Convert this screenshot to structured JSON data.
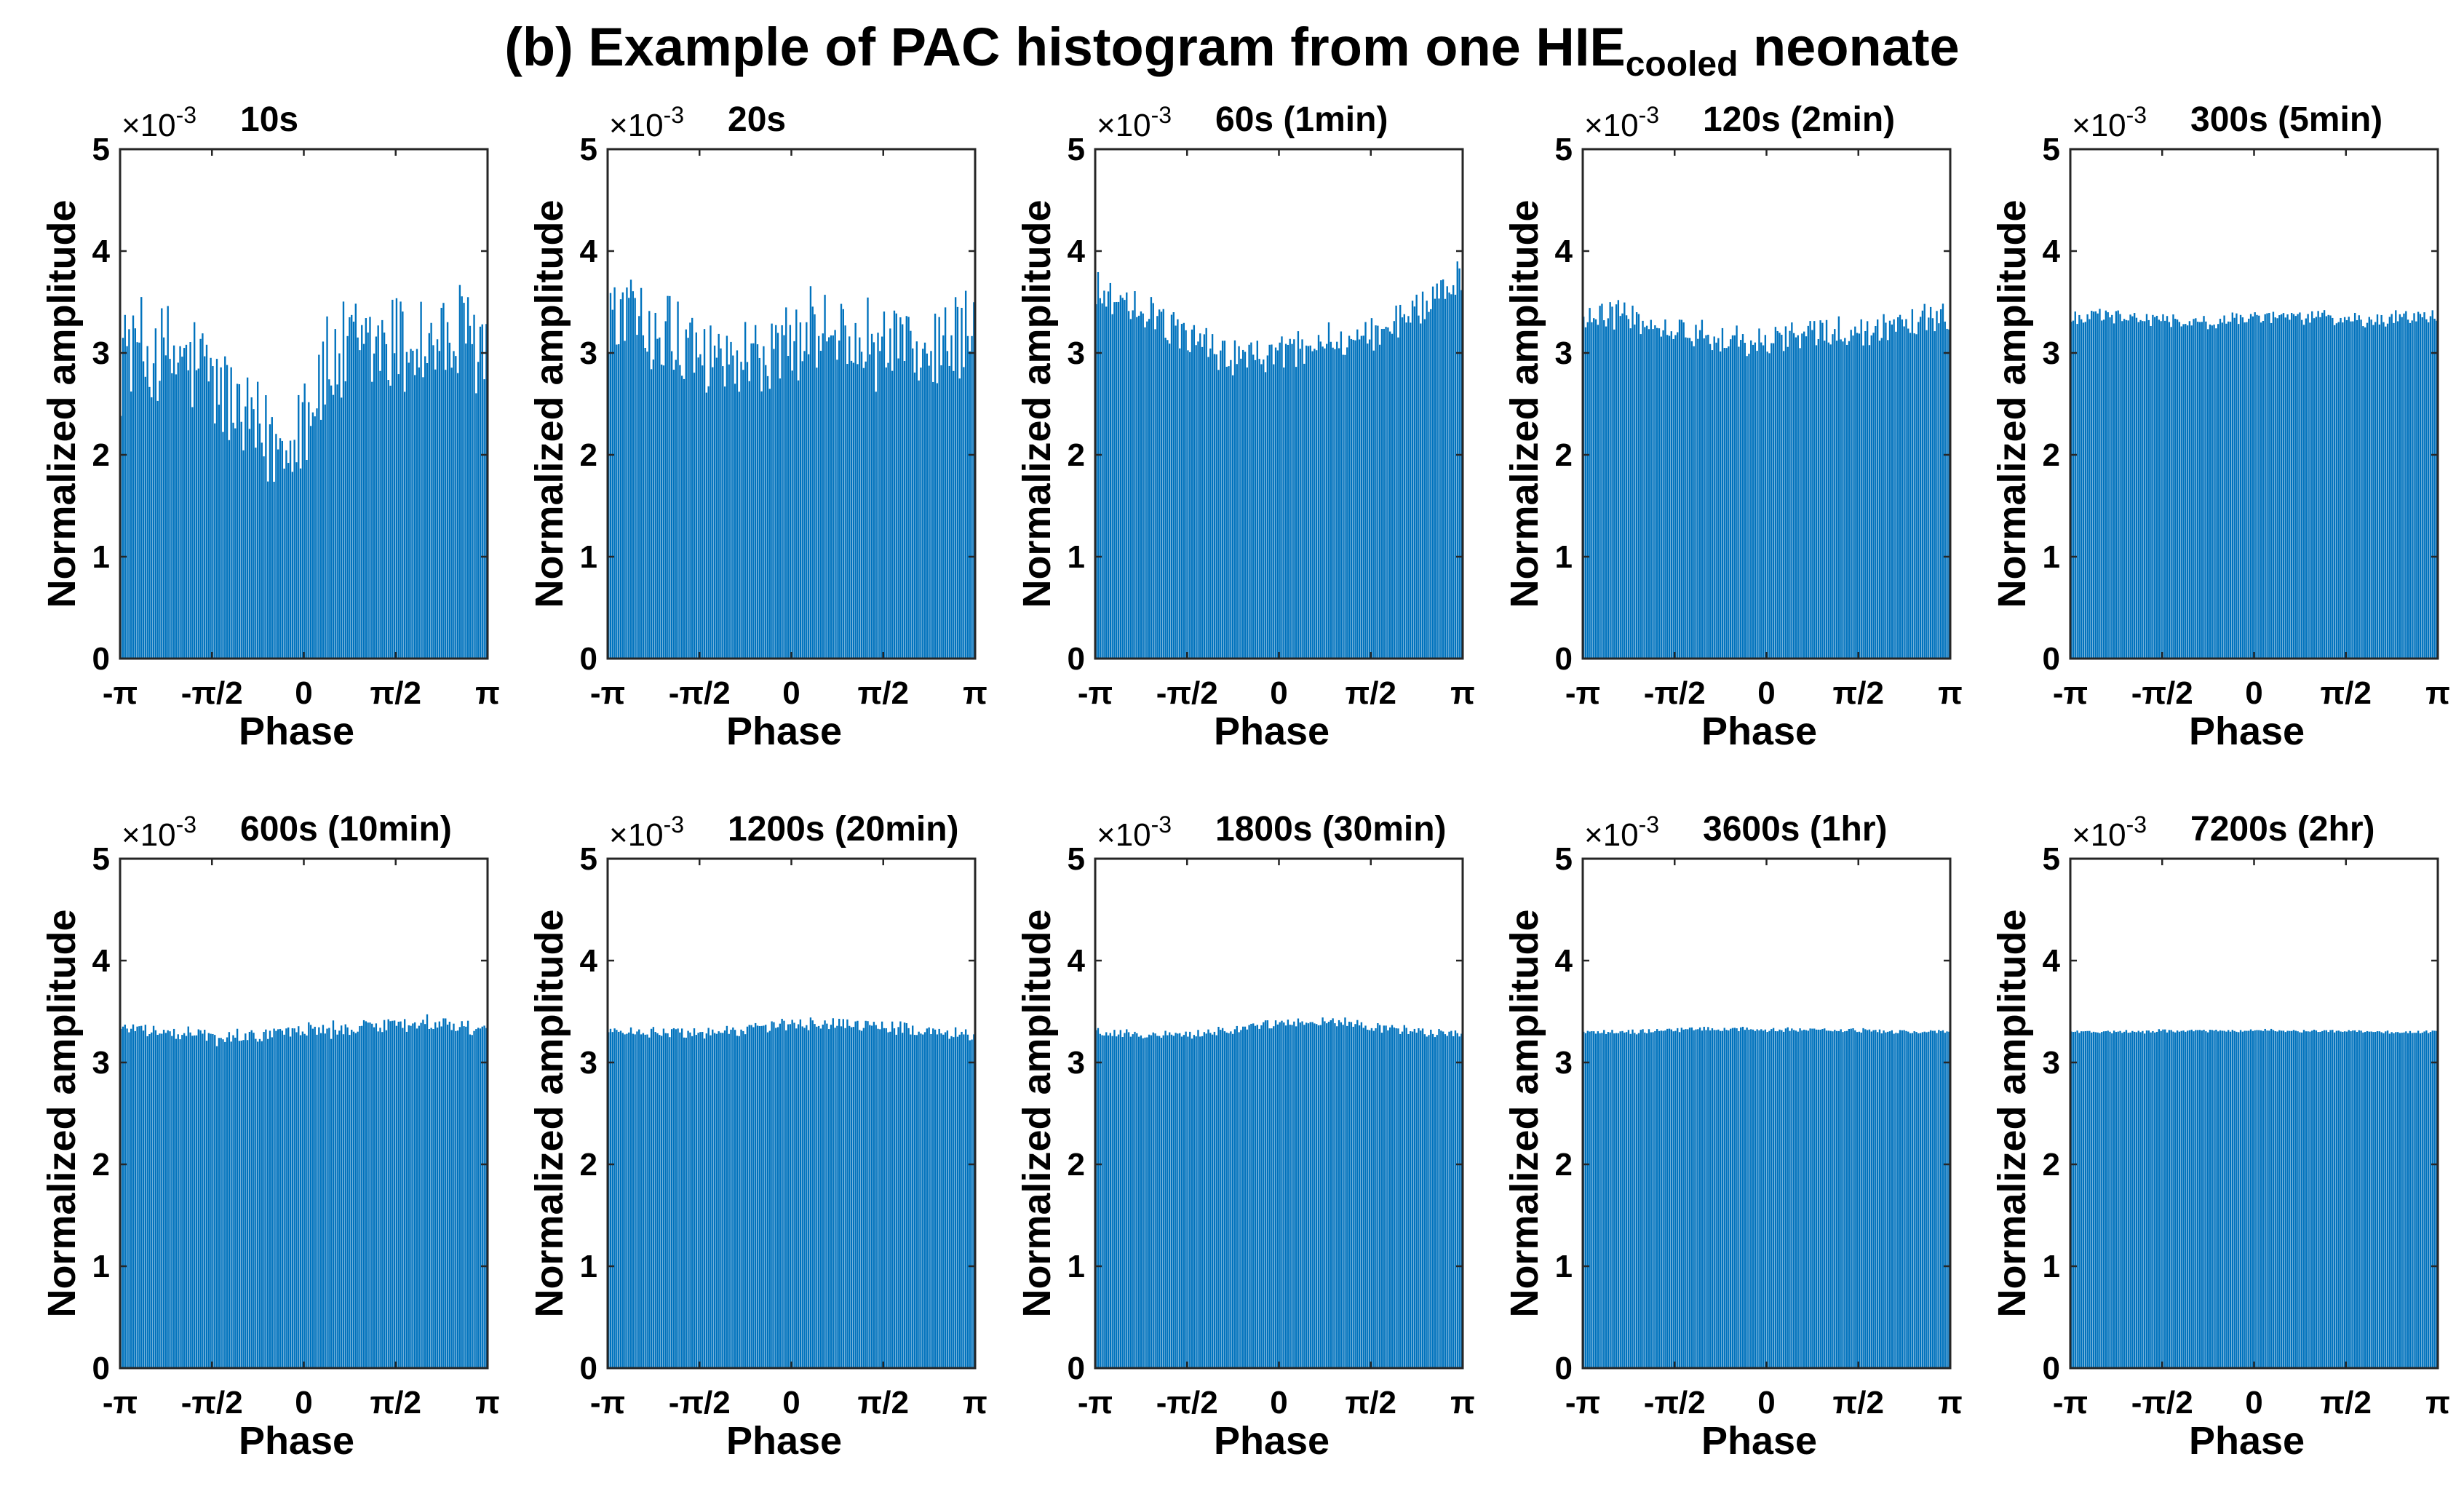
{
  "figure": {
    "title_prefix": "(b) Example of PAC histogram from one HIE",
    "title_subscript": "cooled",
    "title_suffix": " neonate"
  },
  "chart_data": [
    {
      "type": "bar",
      "title": "10s",
      "multiplier": "×10",
      "exponent": "-3",
      "xlabel": "Phase",
      "ylabel": "Normalized amplitude",
      "xlim": [
        "-π",
        "π"
      ],
      "ylim": [
        0,
        5
      ],
      "yticks": [
        "0",
        "1",
        "2",
        "3",
        "4",
        "5"
      ],
      "xticks": [
        "-π",
        "-π/2",
        "0",
        "π/2",
        "π"
      ],
      "bar_color": "#0072BD",
      "num_bins": 180,
      "base_profile": [
        3.1,
        3.0,
        2.95,
        2.9,
        2.75,
        2.45,
        2.15,
        2.1,
        2.45,
        2.8,
        3.0,
        3.05,
        3.1,
        3.1,
        3.1,
        3.1,
        3.1
      ],
      "noise_amplitude": 0.75
    },
    {
      "type": "bar",
      "title": "20s",
      "multiplier": "×10",
      "exponent": "-3",
      "xlabel": "Phase",
      "ylabel": "Normalized amplitude",
      "xlim": [
        "-π",
        "π"
      ],
      "ylim": [
        0,
        5
      ],
      "yticks": [
        "0",
        "1",
        "2",
        "3",
        "4",
        "5"
      ],
      "xticks": [
        "-π",
        "-π/2",
        "0",
        "π/2",
        "π"
      ],
      "bar_color": "#0072BD",
      "num_bins": 180,
      "base_profile": [
        3.35,
        3.35,
        3.3,
        3.2,
        3.05,
        2.95,
        2.9,
        3.0,
        3.1,
        3.2,
        3.25,
        3.2,
        3.1,
        3.05,
        3.0,
        3.1,
        3.2
      ],
      "noise_amplitude": 0.55
    },
    {
      "type": "bar",
      "title": "60s  (1min)",
      "multiplier": "×10",
      "exponent": "-3",
      "xlabel": "Phase",
      "ylabel": "Normalized amplitude",
      "xlim": [
        "-π",
        "π"
      ],
      "ylim": [
        0,
        5
      ],
      "yticks": [
        "0",
        "1",
        "2",
        "3",
        "4",
        "5"
      ],
      "xticks": [
        "-π",
        "-π/2",
        "0",
        "π/2",
        "π"
      ],
      "bar_color": "#0072BD",
      "num_bins": 180,
      "base_profile": [
        3.6,
        3.5,
        3.4,
        3.3,
        3.15,
        3.05,
        2.95,
        2.95,
        3.0,
        3.05,
        3.1,
        3.1,
        3.2,
        3.3,
        3.45,
        3.6,
        3.75
      ],
      "noise_amplitude": 0.25
    },
    {
      "type": "bar",
      "title": "120s (2min)",
      "multiplier": "×10",
      "exponent": "-3",
      "xlabel": "Phase",
      "ylabel": "Normalized amplitude",
      "xlim": [
        "-π",
        "π"
      ],
      "ylim": [
        0,
        5
      ],
      "yticks": [
        "0",
        "1",
        "2",
        "3",
        "4",
        "5"
      ],
      "xticks": [
        "-π",
        "-π/2",
        "0",
        "π/2",
        "π"
      ],
      "bar_color": "#0072BD",
      "num_bins": 180,
      "base_profile": [
        3.4,
        3.4,
        3.35,
        3.3,
        3.25,
        3.2,
        3.15,
        3.1,
        3.1,
        3.15,
        3.2,
        3.2,
        3.2,
        3.25,
        3.3,
        3.35,
        3.35
      ],
      "noise_amplitude": 0.2
    },
    {
      "type": "bar",
      "title": "300s (5min)",
      "multiplier": "×10",
      "exponent": "-3",
      "xlabel": "Phase",
      "ylabel": "Normalized amplitude",
      "xlim": [
        "-π",
        "π"
      ],
      "ylim": [
        0,
        5
      ],
      "yticks": [
        "0",
        "1",
        "2",
        "3",
        "4",
        "5"
      ],
      "xticks": [
        "-π",
        "-π/2",
        "0",
        "π/2",
        "π"
      ],
      "bar_color": "#0072BD",
      "num_bins": 180,
      "base_profile": [
        3.35,
        3.35,
        3.35,
        3.33,
        3.32,
        3.3,
        3.3,
        3.32,
        3.35,
        3.35,
        3.35,
        3.35,
        3.33,
        3.32,
        3.33,
        3.35,
        3.35
      ],
      "noise_amplitude": 0.1
    },
    {
      "type": "bar",
      "title": "600s (10min)",
      "multiplier": "×10",
      "exponent": "-3",
      "xlabel": "Phase",
      "ylabel": "Normalized amplitude",
      "xlim": [
        "-π",
        "π"
      ],
      "ylim": [
        0,
        5
      ],
      "yticks": [
        "0",
        "1",
        "2",
        "3",
        "4",
        "5"
      ],
      "xticks": [
        "-π",
        "-π/2",
        "0",
        "π/2",
        "π"
      ],
      "bar_color": "#0072BD",
      "num_bins": 180,
      "base_profile": [
        3.35,
        3.33,
        3.3,
        3.28,
        3.25,
        3.25,
        3.27,
        3.3,
        3.32,
        3.33,
        3.33,
        3.35,
        3.37,
        3.38,
        3.37,
        3.35,
        3.33
      ],
      "noise_amplitude": 0.1
    },
    {
      "type": "bar",
      "title": "1200s (20min)",
      "multiplier": "×10",
      "exponent": "-3",
      "xlabel": "Phase",
      "ylabel": "Normalized amplitude",
      "xlim": [
        "-π",
        "π"
      ],
      "ylim": [
        0,
        5
      ],
      "yticks": [
        "0",
        "1",
        "2",
        "3",
        "4",
        "5"
      ],
      "xticks": [
        "-π",
        "-π/2",
        "0",
        "π/2",
        "π"
      ],
      "bar_color": "#0072BD",
      "num_bins": 180,
      "base_profile": [
        3.3,
        3.3,
        3.3,
        3.3,
        3.3,
        3.32,
        3.33,
        3.35,
        3.37,
        3.38,
        3.38,
        3.37,
        3.35,
        3.33,
        3.3,
        3.28,
        3.28
      ],
      "noise_amplitude": 0.08
    },
    {
      "type": "bar",
      "title": "1800s  (30min)",
      "multiplier": "×10",
      "exponent": "-3",
      "xlabel": "Phase",
      "ylabel": "Normalized amplitude",
      "xlim": [
        "-π",
        "π"
      ],
      "ylim": [
        0,
        5
      ],
      "yticks": [
        "0",
        "1",
        "2",
        "3",
        "4",
        "5"
      ],
      "xticks": [
        "-π",
        "-π/2",
        "0",
        "π/2",
        "π"
      ],
      "bar_color": "#0072BD",
      "num_bins": 180,
      "base_profile": [
        3.3,
        3.28,
        3.27,
        3.27,
        3.28,
        3.3,
        3.32,
        3.35,
        3.38,
        3.4,
        3.4,
        3.38,
        3.35,
        3.33,
        3.3,
        3.28,
        3.27
      ],
      "noise_amplitude": 0.06
    },
    {
      "type": "bar",
      "title": "3600s (1hr)",
      "multiplier": "×10",
      "exponent": "-3",
      "xlabel": "Phase",
      "ylabel": "Normalized amplitude",
      "xlim": [
        "-π",
        "π"
      ],
      "ylim": [
        0,
        5
      ],
      "yticks": [
        "0",
        "1",
        "2",
        "3",
        "4",
        "5"
      ],
      "xticks": [
        "-π",
        "-π/2",
        "0",
        "π/2",
        "π"
      ],
      "bar_color": "#0072BD",
      "num_bins": 180,
      "base_profile": [
        3.3,
        3.3,
        3.3,
        3.31,
        3.32,
        3.33,
        3.33,
        3.33,
        3.32,
        3.32,
        3.32,
        3.32,
        3.31,
        3.31,
        3.3,
        3.3,
        3.3
      ],
      "noise_amplitude": 0.03
    },
    {
      "type": "bar",
      "title": "7200s (2hr)",
      "multiplier": "×10",
      "exponent": "-3",
      "xlabel": "Phase",
      "ylabel": "Normalized amplitude",
      "xlim": [
        "-π",
        "π"
      ],
      "ylim": [
        0,
        5
      ],
      "yticks": [
        "0",
        "1",
        "2",
        "3",
        "4",
        "5"
      ],
      "xticks": [
        "-π",
        "-π/2",
        "0",
        "π/2",
        "π"
      ],
      "bar_color": "#0072BD",
      "num_bins": 180,
      "base_profile": [
        3.3,
        3.3,
        3.3,
        3.3,
        3.31,
        3.31,
        3.31,
        3.31,
        3.31,
        3.31,
        3.31,
        3.31,
        3.31,
        3.3,
        3.3,
        3.3,
        3.3
      ],
      "noise_amplitude": 0.02
    }
  ]
}
